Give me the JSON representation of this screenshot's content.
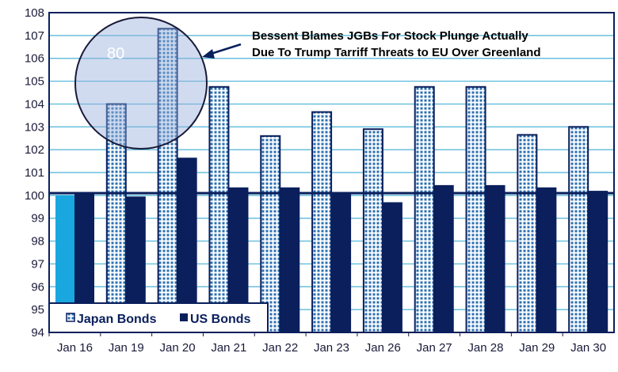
{
  "chart_data": {
    "type": "bar",
    "categories": [
      "Jan 16",
      "Jan 19",
      "Jan 20",
      "Jan 21",
      "Jan 22",
      "Jan 23",
      "Jan 26",
      "Jan 27",
      "Jan 28",
      "Jan 29",
      "Jan 30"
    ],
    "series": [
      {
        "name": "Japan Bonds",
        "values": [
          100.0,
          104.0,
          107.3,
          104.75,
          102.6,
          103.65,
          102.9,
          104.75,
          104.75,
          102.65,
          103.0
        ]
      },
      {
        "name": "US Bonds",
        "values": [
          100.1,
          99.95,
          101.65,
          100.35,
          100.35,
          100.1,
          99.7,
          100.45,
          100.45,
          100.35,
          100.2
        ]
      }
    ],
    "ylim": [
      94,
      108
    ],
    "yticks": [
      94,
      95,
      96,
      97,
      98,
      99,
      100,
      101,
      102,
      103,
      104,
      105,
      106,
      107,
      108
    ],
    "reference_line": 100.1,
    "grid": true,
    "legend": "bottom-left",
    "annotation": [
      "Bessent Blames JGBs For Stock Plunge Actually",
      "Due To Trump Tarriff Threats to EU Over Greenland"
    ],
    "circle_label": "80",
    "colors": {
      "japan": "#2a6fb0",
      "japan_first": "#1aa7e0",
      "us": "#0a1f5c",
      "grid": "#4bb3d6"
    }
  }
}
